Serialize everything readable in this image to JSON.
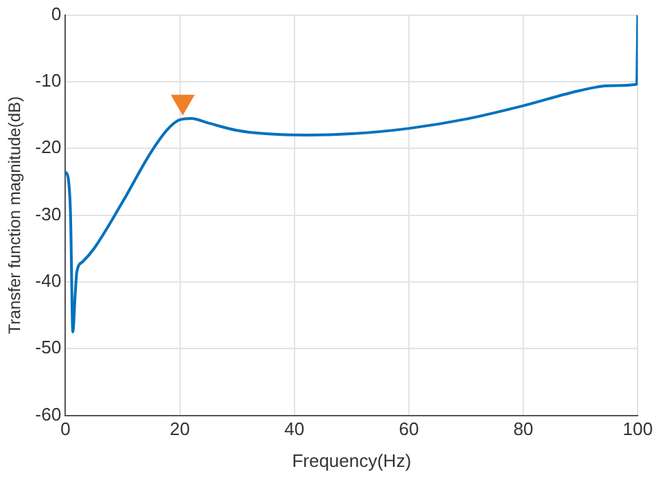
{
  "chart_data": {
    "type": "line",
    "xlabel": "Frequency(Hz)",
    "ylabel": "Transfer function magnitude(dB)",
    "xlim": [
      0,
      100
    ],
    "xticks": [
      0,
      20,
      40,
      60,
      80,
      100
    ],
    "ylim": [
      -60,
      0
    ],
    "yticks": [
      -60,
      -50,
      -40,
      -30,
      -20,
      -10,
      0
    ],
    "grid": true,
    "legend": false,
    "line_style": "solid",
    "marker": "none",
    "series": [
      {
        "type": "line",
        "color": "#0072bd",
        "x": [
          0,
          0.5,
          0.9,
          1.3,
          1.7,
          2,
          3,
          5,
          10,
          15,
          18,
          20,
          22,
          25,
          30,
          35,
          42,
          50,
          60,
          70,
          80,
          90,
          95,
          99.8,
          100
        ],
        "values": [
          -23.5,
          -24.5,
          -30,
          -47.5,
          -42,
          -38.5,
          -37,
          -35,
          -28,
          -20.5,
          -17,
          -15.7,
          -15.5,
          -16.2,
          -17.3,
          -17.8,
          -18,
          -17.8,
          -17,
          -15.6,
          -13.6,
          -11.3,
          -10.6,
          -10.4,
          0
        ]
      },
      {
        "type": "scatter",
        "color": "#f07f2a",
        "marker": "triangle",
        "x": [
          20.5
        ],
        "values": [
          -13
        ]
      }
    ]
  }
}
